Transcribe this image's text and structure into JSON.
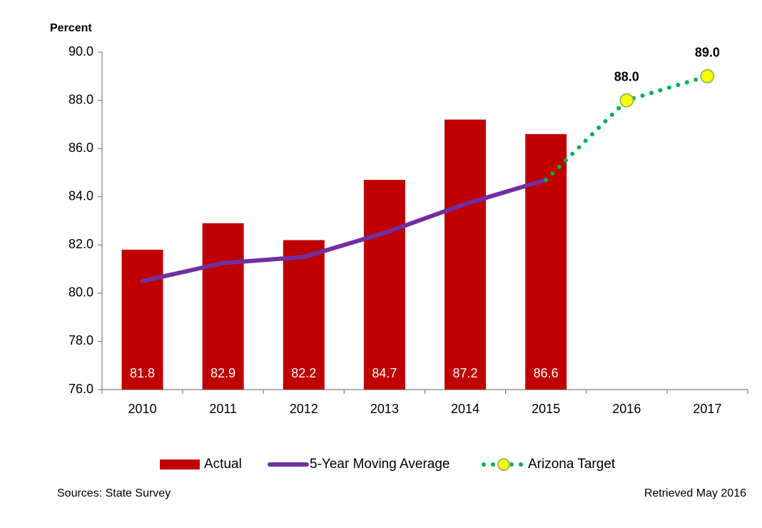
{
  "chart_data": {
    "type": "bar",
    "y_label": "Percent",
    "categories": [
      "2010",
      "2011",
      "2012",
      "2013",
      "2014",
      "2015",
      "2016",
      "2017"
    ],
    "series": [
      {
        "name": "Actual",
        "type": "bar",
        "color": "#c00000",
        "values": [
          81.8,
          82.9,
          82.2,
          84.7,
          87.2,
          86.6,
          null,
          null
        ]
      },
      {
        "name": "5-Year Moving Average",
        "type": "line",
        "color": "#7030a0",
        "values": [
          80.5,
          81.25,
          81.5,
          82.5,
          83.7,
          84.7,
          null,
          null
        ]
      },
      {
        "name": "Arizona Target",
        "type": "dotted",
        "color": "#00b050",
        "marker_color": "#ffff00",
        "values": [
          null,
          null,
          null,
          null,
          null,
          84.7,
          88,
          89
        ],
        "value_labels": [
          null,
          null,
          null,
          null,
          null,
          null,
          "88.0",
          "89.0"
        ]
      }
    ],
    "ylim": [
      76,
      90
    ],
    "yticks": [
      {
        "value": 76,
        "label": "76.0"
      },
      {
        "value": 78,
        "label": "78.0"
      },
      {
        "value": 80,
        "label": "80.0"
      },
      {
        "value": 82,
        "label": "82.0"
      },
      {
        "value": 84,
        "label": "84.0"
      },
      {
        "value": 86,
        "label": "86.0"
      },
      {
        "value": 88,
        "label": "88.0"
      },
      {
        "value": 90,
        "label": "90.0"
      }
    ],
    "grid": false,
    "legend": "bottom",
    "source": "Sources: State Survey",
    "retrieved": "Retrieved May 2016"
  }
}
